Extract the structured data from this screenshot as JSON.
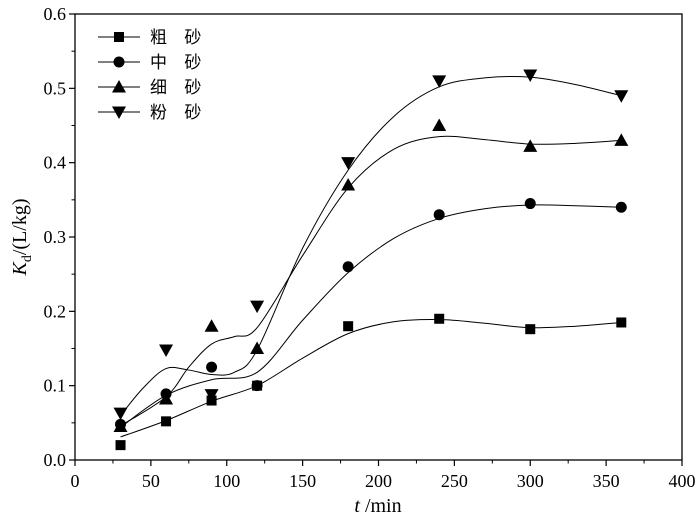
{
  "chart_data": {
    "type": "scatter",
    "xlabel": {
      "symbol": "t",
      "unit": " /min"
    },
    "ylabel": {
      "symbol": "K",
      "subscript": "d",
      "unit": "/(L/kg)"
    },
    "xlim": [
      0,
      400
    ],
    "ylim": [
      0,
      0.6
    ],
    "xticks": [
      "0",
      "50",
      "100",
      "150",
      "200",
      "250",
      "300",
      "350",
      "400"
    ],
    "yticks": [
      "0.0",
      "0.1",
      "0.2",
      "0.3",
      "0.4",
      "0.5",
      "0.6"
    ],
    "grid": false,
    "legend_position": "top-left",
    "colors": {
      "marks": "#000000",
      "background": "#ffffff"
    },
    "x": [
      30,
      60,
      90,
      120,
      180,
      240,
      300,
      360
    ],
    "series": [
      {
        "name": "粗 砂",
        "marker": "square",
        "values": [
          0.02,
          0.052,
          0.08,
          0.1,
          0.18,
          0.19,
          0.176,
          0.185
        ],
        "fit": [
          [
            30,
            0.031
          ],
          [
            60,
            0.053
          ],
          [
            90,
            0.079
          ],
          [
            120,
            0.1
          ],
          [
            150,
            0.137
          ],
          [
            180,
            0.17
          ],
          [
            210,
            0.186
          ],
          [
            240,
            0.189
          ],
          [
            270,
            0.184
          ],
          [
            300,
            0.178
          ],
          [
            330,
            0.18
          ],
          [
            360,
            0.185
          ]
        ]
      },
      {
        "name": "中 砂",
        "marker": "circle",
        "values": [
          0.048,
          0.089,
          0.125,
          0.1,
          0.26,
          0.33,
          0.345,
          0.34
        ],
        "fit": [
          [
            30,
            0.044
          ],
          [
            60,
            0.087
          ],
          [
            90,
            0.108
          ],
          [
            120,
            0.118
          ],
          [
            150,
            0.188
          ],
          [
            180,
            0.252
          ],
          [
            210,
            0.298
          ],
          [
            240,
            0.325
          ],
          [
            270,
            0.338
          ],
          [
            300,
            0.343
          ],
          [
            330,
            0.342
          ],
          [
            360,
            0.34
          ]
        ]
      },
      {
        "name": "细 砂",
        "marker": "triangle-up",
        "values": [
          0.045,
          0.082,
          0.18,
          0.15,
          0.37,
          0.45,
          0.422,
          0.43
        ],
        "fit": [
          [
            30,
            0.046
          ],
          [
            60,
            0.085
          ],
          [
            75,
            0.125
          ],
          [
            90,
            0.156
          ],
          [
            105,
            0.166
          ],
          [
            120,
            0.178
          ],
          [
            150,
            0.275
          ],
          [
            180,
            0.366
          ],
          [
            210,
            0.418
          ],
          [
            240,
            0.435
          ],
          [
            270,
            0.431
          ],
          [
            300,
            0.425
          ],
          [
            330,
            0.426
          ],
          [
            360,
            0.43
          ]
        ]
      },
      {
        "name": "粉 砂",
        "marker": "triangle-down",
        "values": [
          0.063,
          0.148,
          0.088,
          0.207,
          0.4,
          0.51,
          0.518,
          0.49
        ],
        "fit": [
          [
            30,
            0.06
          ],
          [
            45,
            0.097
          ],
          [
            60,
            0.123
          ],
          [
            75,
            0.121
          ],
          [
            90,
            0.115
          ],
          [
            105,
            0.118
          ],
          [
            120,
            0.148
          ],
          [
            150,
            0.285
          ],
          [
            180,
            0.39
          ],
          [
            210,
            0.462
          ],
          [
            240,
            0.502
          ],
          [
            270,
            0.514
          ],
          [
            300,
            0.515
          ],
          [
            330,
            0.505
          ],
          [
            360,
            0.49
          ]
        ]
      }
    ]
  }
}
